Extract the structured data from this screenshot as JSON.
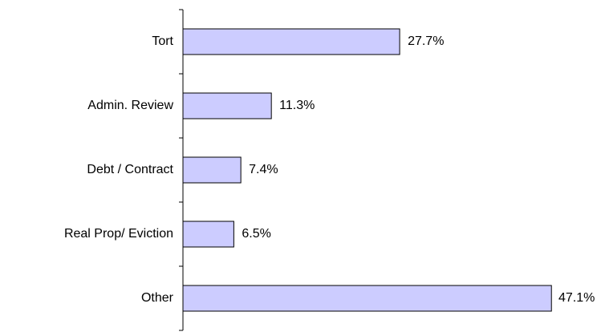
{
  "chart_data": {
    "type": "bar",
    "orientation": "horizontal",
    "categories": [
      "Tort",
      "Admin. Review",
      "Debt / Contract",
      "Real Prop/ Eviction",
      "Other"
    ],
    "values": [
      27.7,
      11.3,
      7.4,
      6.5,
      47.1
    ],
    "value_labels": [
      "27.7%",
      "11.3%",
      "7.4%",
      "6.5%",
      "47.1%"
    ],
    "color": "#ccccff"
  }
}
